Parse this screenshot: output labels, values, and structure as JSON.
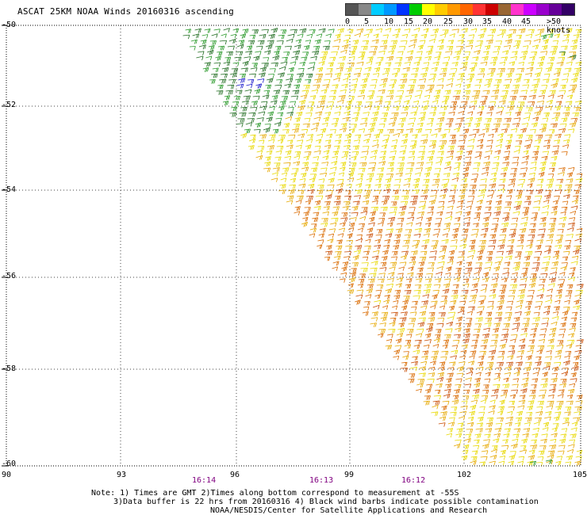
{
  "title": "ASCAT 25KM NOAA Winds 20160316 ascending",
  "legend": {
    "colors": [
      "#555555",
      "#888888",
      "#00ccff",
      "#0099ff",
      "#0033ff",
      "#00cc00",
      "#ffff00",
      "#ffcc00",
      "#ff9900",
      "#ff6600",
      "#ff3333",
      "#cc0000",
      "#996633",
      "#ff33cc",
      "#cc00ff",
      "#9900cc",
      "#660099",
      "#330066"
    ],
    "labels": [
      "0",
      "5",
      "10",
      "15",
      "20",
      "25",
      "30",
      "35",
      "40",
      "45",
      ">50 knots"
    ]
  },
  "axes": {
    "lat_labels": [
      "-50",
      "-52",
      "-54",
      "-56",
      "-58",
      "-60"
    ],
    "lon_labels": [
      "90",
      "93",
      "96",
      "99",
      "102",
      "105"
    ]
  },
  "times": [
    "16:14",
    "16:13",
    "16:12"
  ],
  "note": {
    "line1": "Note: 1) Times are GMT 2)Times along bottom correspond to measurement at -55S",
    "line2": "3)Data buffer is 22 hrs from 20160316 4) Black wind barbs indicate possible contamination",
    "line3": "NOAA/NESDIS/Center for Satellite Applications and Research"
  },
  "map_colors": {
    "light": "#2b9a2b",
    "calm": "#1e6b1e",
    "strong_blue": "#1a1acc",
    "moderate": "#e8d800",
    "fresh": "#e6a800",
    "strong": "#d96a00",
    "gale": "#c84a00"
  }
}
